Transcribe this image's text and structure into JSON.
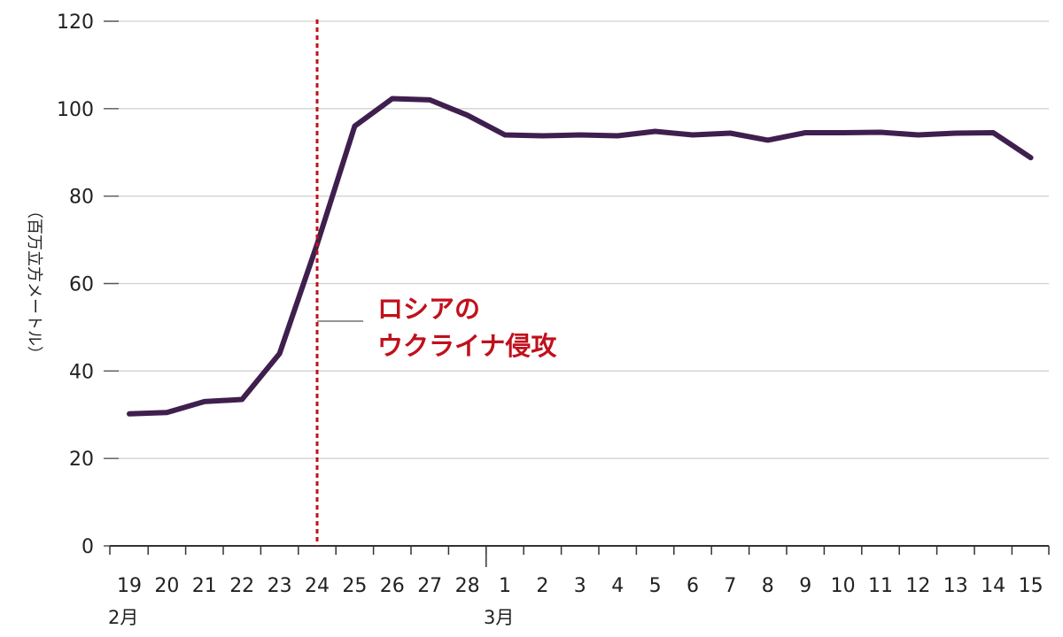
{
  "chart_data": {
    "type": "line",
    "ylabel": "（百万立方メートル）",
    "ylim": [
      0,
      120
    ],
    "y_ticks": [
      0,
      20,
      40,
      60,
      80,
      100,
      120
    ],
    "grid": true,
    "categories": [
      "19",
      "20",
      "21",
      "22",
      "23",
      "24",
      "25",
      "26",
      "27",
      "28",
      "1",
      "2",
      "3",
      "4",
      "5",
      "6",
      "7",
      "8",
      "9",
      "10",
      "11",
      "12",
      "13",
      "14",
      "15"
    ],
    "month_labels": [
      {
        "label": "2月",
        "at": "19"
      },
      {
        "label": "3月",
        "at": "1"
      }
    ],
    "series": [
      {
        "values": [
          30.2,
          30.5,
          33.0,
          33.5,
          44.0,
          69.0,
          96.0,
          102.3,
          102.0,
          98.5,
          94.0,
          93.8,
          94.0,
          93.8,
          94.8,
          94.0,
          94.4,
          92.8,
          94.5,
          94.5,
          94.6,
          94.0,
          94.4,
          94.5,
          88.8
        ],
        "color": "#3f1f4e"
      }
    ],
    "annotation": {
      "lines": [
        "ロシアの",
        "ウクライナ侵攻"
      ],
      "at": "24",
      "color": "#c0101c"
    }
  }
}
